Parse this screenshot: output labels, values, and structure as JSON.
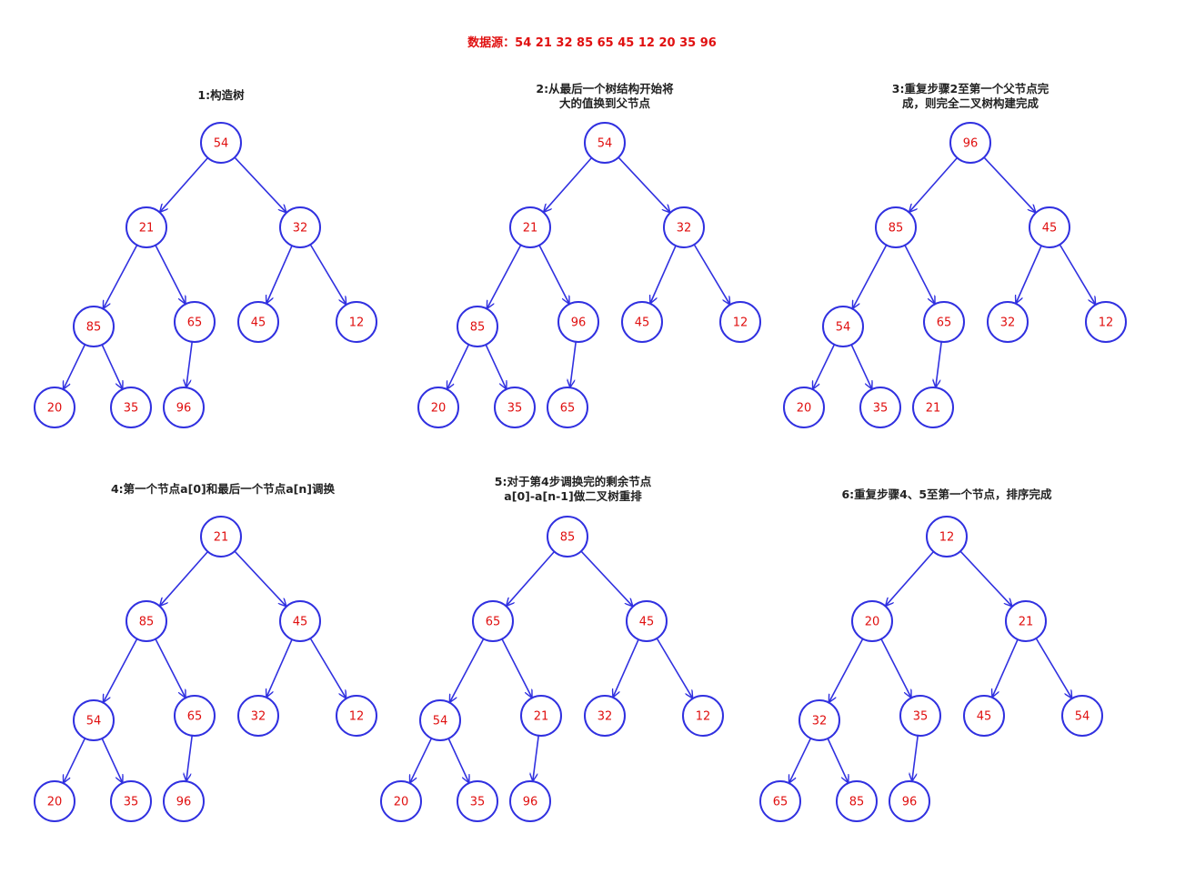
{
  "header": {
    "text": "数据源：54 21 32 85 65 45 12 20 35 96"
  },
  "colors": {
    "edge": "#3030e0",
    "node_stroke": "#3030e0",
    "node_text": "#e01010",
    "title_text": "#e01010",
    "caption_text": "#222222"
  },
  "steps": [
    {
      "caption": [
        "1:构造树"
      ],
      "values": [
        "54",
        "21",
        "32",
        "85",
        "65",
        "45",
        "12",
        "20",
        "35",
        "96"
      ]
    },
    {
      "caption": [
        "2:从最后一个树结构开始将",
        "大的值换到父节点"
      ],
      "values": [
        "54",
        "21",
        "32",
        "85",
        "96",
        "45",
        "12",
        "20",
        "35",
        "65"
      ]
    },
    {
      "caption": [
        "3:重复步骤2至第一个父节点完",
        "成，则完全二叉树构建完成"
      ],
      "values": [
        "96",
        "85",
        "45",
        "54",
        "65",
        "32",
        "12",
        "20",
        "35",
        "21"
      ]
    },
    {
      "caption": [
        "4:第一个节点a[0]和最后一个节点a[n]调换"
      ],
      "values": [
        "21",
        "85",
        "45",
        "54",
        "65",
        "32",
        "12",
        "20",
        "35",
        "96"
      ]
    },
    {
      "caption": [
        "5:对于第4步调换完的剩余节点",
        "a[0]-a[n-1]做二叉树重排"
      ],
      "values": [
        "85",
        "65",
        "45",
        "54",
        "21",
        "32",
        "12",
        "20",
        "35",
        "96"
      ]
    },
    {
      "caption": [
        "6:重复步骤4、5至第一个节点，排序完成"
      ],
      "values": [
        "12",
        "20",
        "21",
        "32",
        "35",
        "45",
        "54",
        "65",
        "85",
        "96"
      ]
    }
  ]
}
